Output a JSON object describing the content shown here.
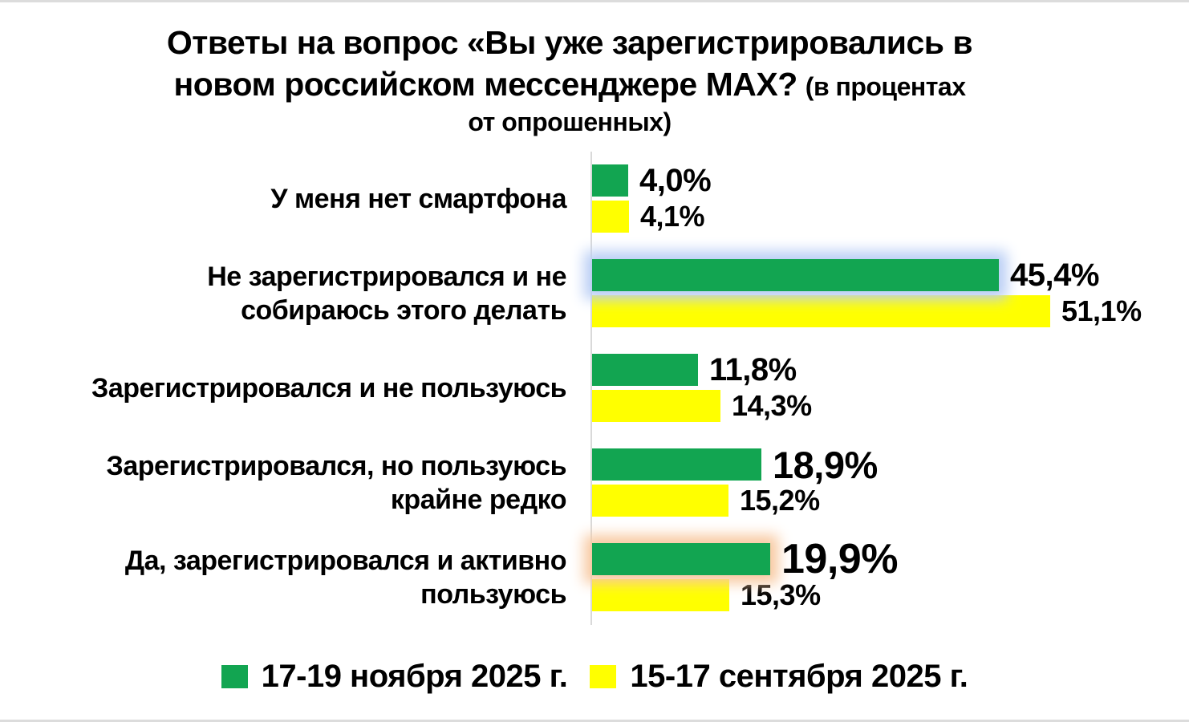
{
  "page": {
    "background": "#ffffff",
    "border_color": "#dcdcdc"
  },
  "title": {
    "full": "Ответы на вопрос «Вы уже зарегистрировались в новом российском мессенджере MAX? (в процентах от опрошенных)",
    "line1": "Ответы на вопрос «Вы уже зарегистрировались в",
    "line2_main": "новом российском мессенджере MAX?",
    "line2_note": "(в процентах",
    "line3_note": "от опрошенных)"
  },
  "legend": {
    "items": [
      {
        "label": "17-19 ноября 2025 г.",
        "color": "#12a551"
      },
      {
        "label": "15-17 сентября 2025 г.",
        "color": "#ffff00"
      }
    ]
  },
  "chart_data": {
    "type": "bar",
    "orientation": "horizontal",
    "title": "Ответы на вопрос «Вы уже зарегистрировались в новом российском мессенджере MAX? (в процентах от опрошенных)",
    "xlim": [
      0,
      55
    ],
    "grid": false,
    "legend_position": "bottom",
    "axis_line_color": "#d9d9d9",
    "series": [
      {
        "name": "17-19 ноября 2025 г.",
        "color": "#12a551"
      },
      {
        "name": "15-17 сентября 2025 г.",
        "color": "#ffff00"
      }
    ],
    "categories": [
      "У меня нет смартфона",
      "Не зарегистрировался и не собираюсь этого делать",
      "Зарегистрировался и не пользуюсь",
      "Зарегистрировался, но пользуюсь крайне редко",
      "Да, зарегистрировался и активно пользуюсь"
    ],
    "rows": [
      {
        "category": "У меня нет смартфона",
        "category_lines": [
          "У меня нет смартфона"
        ],
        "values": [
          4.0,
          4.1
        ],
        "value_labels": [
          "4,0%",
          "4,1%"
        ],
        "value_font_px": [
          40,
          36
        ],
        "glow": null
      },
      {
        "category": "Не зарегистрировался и не собираюсь этого делать",
        "category_lines": [
          "Не зарегистрировался и не",
          "собираюсь этого делать"
        ],
        "values": [
          45.4,
          51.1
        ],
        "value_labels": [
          "45,4%",
          "51,1%"
        ],
        "value_font_px": [
          40,
          36
        ],
        "glow": "#b9cef5"
      },
      {
        "category": "Зарегистрировался и не пользуюсь",
        "category_lines": [
          "Зарегистрировался и не пользуюсь"
        ],
        "values": [
          11.8,
          14.3
        ],
        "value_labels": [
          "11,8%",
          "14,3%"
        ],
        "value_font_px": [
          40,
          36
        ],
        "glow": null
      },
      {
        "category": "Зарегистрировался, но пользуюсь крайне редко",
        "category_lines": [
          "Зарегистрировался, но пользуюсь",
          "крайне редко"
        ],
        "values": [
          18.9,
          15.2
        ],
        "value_labels": [
          "18,9%",
          "15,2%"
        ],
        "value_font_px": [
          47,
          36
        ],
        "glow": null
      },
      {
        "category": "Да, зарегистрировался и активно пользуюсь",
        "category_lines": [
          "Да, зарегистрировался и активно",
          "пользуюсь"
        ],
        "values": [
          19.9,
          15.3
        ],
        "value_labels": [
          "19,9%",
          "15,3%"
        ],
        "value_font_px": [
          52,
          36
        ],
        "glow": "#f8c9a0"
      }
    ]
  }
}
